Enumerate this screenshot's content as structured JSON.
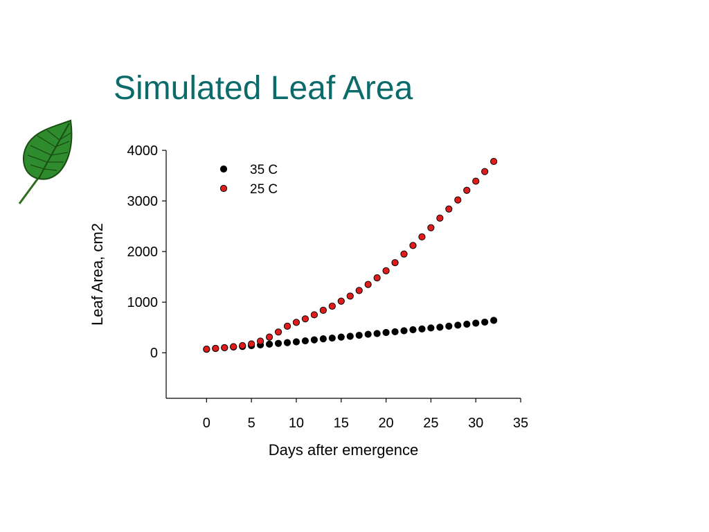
{
  "slide": {
    "title": "Simulated Leaf Area"
  },
  "icons": {
    "leaf": "leaf-icon"
  },
  "colors": {
    "title": "#0b6b6b",
    "series_35C": "#000000",
    "series_25C": "#e01b1b",
    "leaf": "#2e8b2e"
  },
  "chart_data": {
    "type": "scatter",
    "title": "",
    "xlabel": "Days after emergence",
    "ylabel": "Leaf Area, cm2",
    "xlim": [
      -4.5,
      35
    ],
    "ylim": [
      -900,
      4000
    ],
    "xticks": [
      0,
      5,
      10,
      15,
      20,
      25,
      30,
      35
    ],
    "yticks": [
      0,
      1000,
      2000,
      3000,
      4000
    ],
    "grid": false,
    "legend": "top-left",
    "series": [
      {
        "name": "35 C",
        "color": "#000000",
        "x": [
          0,
          1,
          2,
          3,
          4,
          5,
          6,
          7,
          8,
          9,
          10,
          11,
          12,
          13,
          14,
          15,
          16,
          17,
          18,
          19,
          20,
          21,
          22,
          23,
          24,
          25,
          26,
          27,
          28,
          29,
          30,
          31,
          32
        ],
        "y": [
          70,
          85,
          100,
          115,
          125,
          140,
          155,
          170,
          185,
          200,
          215,
          235,
          255,
          275,
          290,
          310,
          325,
          345,
          365,
          380,
          400,
          415,
          435,
          455,
          470,
          490,
          505,
          525,
          545,
          565,
          585,
          605,
          640
        ]
      },
      {
        "name": "25 C",
        "color": "#e01b1b",
        "x": [
          0,
          1,
          2,
          3,
          4,
          5,
          6,
          7,
          8,
          9,
          10,
          11,
          12,
          13,
          14,
          15,
          16,
          17,
          18,
          19,
          20,
          21,
          22,
          23,
          24,
          25,
          26,
          27,
          28,
          29,
          30,
          31,
          32
        ],
        "y": [
          70,
          85,
          100,
          120,
          140,
          175,
          230,
          310,
          410,
          525,
          600,
          670,
          750,
          840,
          920,
          1020,
          1120,
          1230,
          1350,
          1480,
          1620,
          1780,
          1950,
          2120,
          2290,
          2470,
          2660,
          2840,
          3020,
          3210,
          3390,
          3580,
          3780
        ]
      }
    ]
  }
}
